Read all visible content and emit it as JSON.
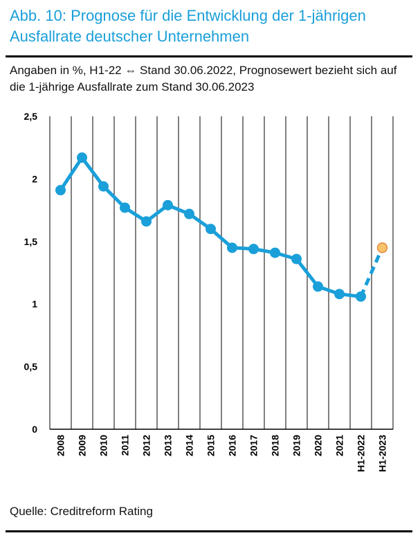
{
  "header": {
    "title": "Abb. 10: Prognose für die Entwicklung der 1-jährigen Ausfallrate deutscher Unternehmen",
    "subtitle": "Angaben in %, H1-22 ⇔ Stand 30.06.2022, Prognosewert bezieht sich auf die 1-jährige Ausfallrate zum Stand 30.06.2023"
  },
  "footer": {
    "source": "Quelle: Creditreform Rating"
  },
  "colors": {
    "title": "#1a9fd9",
    "line": "#1a9fd9",
    "forecast_fill": "#f6c26b",
    "forecast_stroke": "#e07b2a",
    "grid": "#000000"
  },
  "chart_data": {
    "type": "line",
    "categories": [
      "2008",
      "2009",
      "2010",
      "2011",
      "2012",
      "2013",
      "2014",
      "2015",
      "2016",
      "2017",
      "2018",
      "2019",
      "2020",
      "2021",
      "H1-2022",
      "H1-2023"
    ],
    "series": [
      {
        "values": [
          1.91,
          2.17,
          1.94,
          1.77,
          1.66,
          1.79,
          1.72,
          1.6,
          1.45,
          1.44,
          1.41,
          1.36,
          1.14,
          1.08,
          1.06,
          null
        ]
      },
      {
        "values": [
          null,
          null,
          null,
          null,
          null,
          null,
          null,
          null,
          null,
          null,
          null,
          null,
          null,
          null,
          1.06,
          1.45
        ],
        "style": "dashed",
        "forecast": true
      }
    ],
    "y_ticks": [
      "0",
      "0,5",
      "1",
      "1,5",
      "2",
      "2,5"
    ],
    "ylim": [
      0,
      2.5
    ],
    "grid": "vertical",
    "xlabel": "",
    "ylabel": ""
  }
}
